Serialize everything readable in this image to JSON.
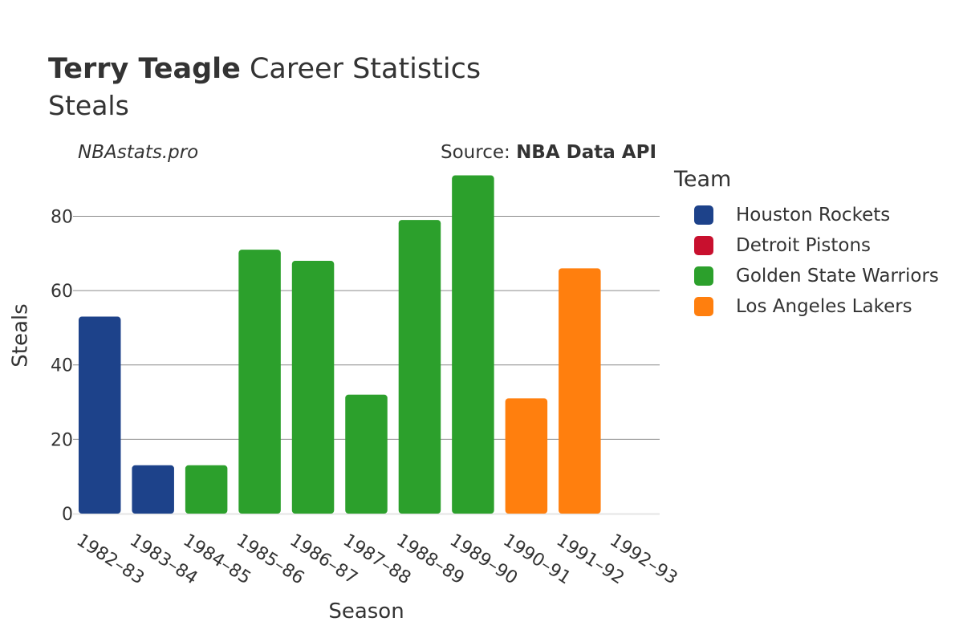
{
  "header": {
    "player": "Terry Teagle",
    "title_rest": " Career Statistics",
    "subtitle": "Steals",
    "site": "NBAstats.pro",
    "source_prefix": "Source: ",
    "source_name": "NBA Data API"
  },
  "legend": {
    "title": "Team",
    "items": [
      {
        "label": "Houston Rockets",
        "color": "#1d428a"
      },
      {
        "label": "Detroit Pistons",
        "color": "#c8102e"
      },
      {
        "label": "Golden State Warriors",
        "color": "#2ca02c"
      },
      {
        "label": "Los Angeles Lakers",
        "color": "#ff7f0e"
      }
    ]
  },
  "chart_data": {
    "type": "bar",
    "xlabel": "Season",
    "ylabel": "Steals",
    "ylim": [
      0,
      95
    ],
    "yticks": [
      0,
      20,
      40,
      60,
      80
    ],
    "grid": true,
    "legend_position": "right",
    "categories": [
      "1982–83",
      "1983–84",
      "1984–85",
      "1985–86",
      "1986–87",
      "1987–88",
      "1988–89",
      "1989–90",
      "1990–91",
      "1991–92",
      "1992–93"
    ],
    "values": [
      53,
      13,
      13,
      71,
      68,
      32,
      79,
      91,
      31,
      66,
      0
    ],
    "teams": [
      "Houston Rockets",
      "Houston Rockets",
      "Golden State Warriors",
      "Golden State Warriors",
      "Golden State Warriors",
      "Golden State Warriors",
      "Golden State Warriors",
      "Golden State Warriors",
      "Los Angeles Lakers",
      "Los Angeles Lakers",
      "Detroit Pistons"
    ]
  }
}
